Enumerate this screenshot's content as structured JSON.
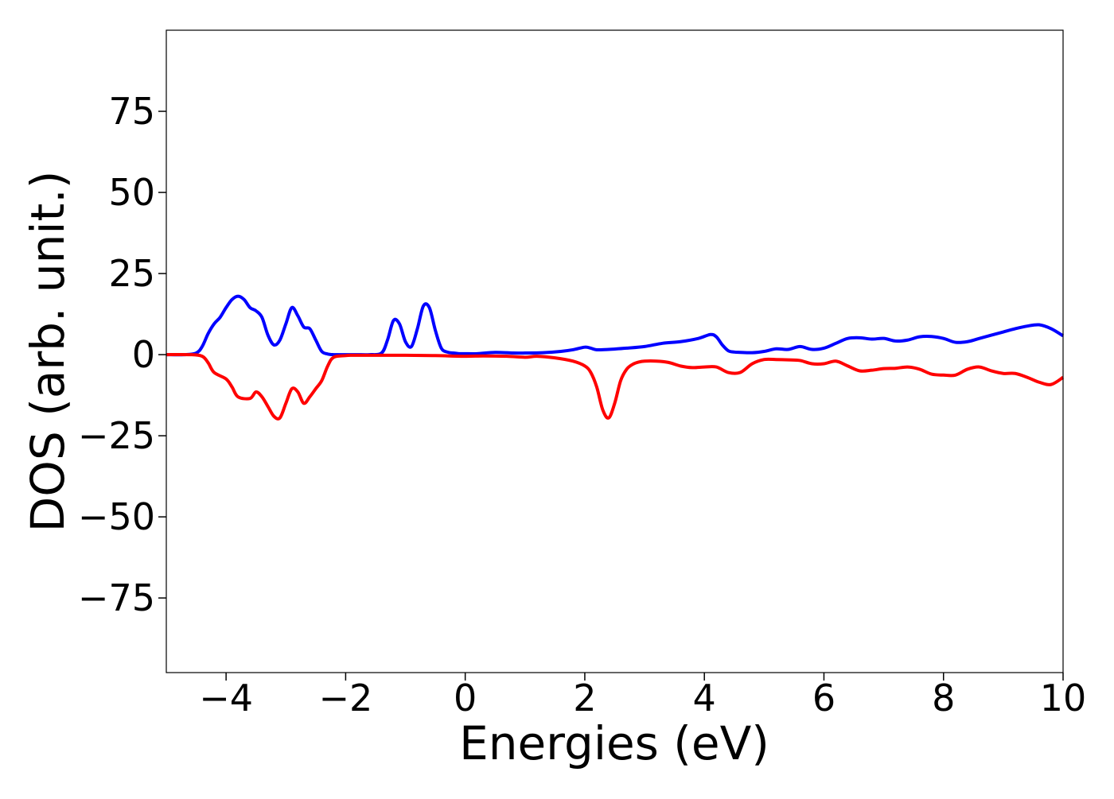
{
  "chart_data": {
    "type": "line",
    "title": "",
    "xlabel": "Energies (eV)",
    "ylabel": "DOS (arb. unit.)",
    "xlim": [
      -5,
      10
    ],
    "ylim": [
      -98,
      100
    ],
    "xticks": [
      -4,
      -2,
      0,
      2,
      4,
      6,
      8,
      10
    ],
    "xtick_labels": [
      "−4",
      "−2",
      "0",
      "2",
      "4",
      "6",
      "8",
      "10"
    ],
    "yticks": [
      75,
      50,
      25,
      0,
      -25,
      -50,
      -75
    ],
    "ytick_labels": [
      "75",
      "50",
      "25",
      "0",
      "−25",
      "−50",
      "−75"
    ],
    "grid": false,
    "legend": "none",
    "series": [
      {
        "color": "#0000ff",
        "x": [
          -5.0,
          -4.7,
          -4.5,
          -4.4,
          -4.3,
          -4.2,
          -4.1,
          -4.0,
          -3.9,
          -3.8,
          -3.7,
          -3.6,
          -3.5,
          -3.4,
          -3.3,
          -3.2,
          -3.1,
          -3.0,
          -2.9,
          -2.8,
          -2.7,
          -2.6,
          -2.5,
          -2.4,
          -2.3,
          -2.2,
          -2.1,
          -2.0,
          -1.9,
          -1.8,
          -1.6,
          -1.4,
          -1.3,
          -1.2,
          -1.1,
          -1.0,
          -0.9,
          -0.8,
          -0.7,
          -0.6,
          -0.5,
          -0.4,
          -0.3,
          -0.2,
          -0.1,
          0.0,
          0.2,
          0.5,
          0.8,
          1.0,
          1.3,
          1.6,
          1.8,
          2.0,
          2.1,
          2.2,
          2.4,
          2.7,
          3.0,
          3.3,
          3.6,
          3.9,
          4.1,
          4.2,
          4.3,
          4.4,
          4.5,
          4.6,
          4.8,
          5.0,
          5.2,
          5.4,
          5.6,
          5.8,
          6.0,
          6.2,
          6.4,
          6.6,
          6.8,
          7.0,
          7.2,
          7.4,
          7.6,
          7.8,
          8.0,
          8.2,
          8.4,
          8.6,
          8.8,
          9.0,
          9.2,
          9.4,
          9.6,
          9.8,
          10.0
        ],
        "y": [
          0.0,
          0.0,
          0.5,
          2.5,
          6.5,
          9.5,
          11.5,
          14.5,
          17.0,
          18.0,
          17.0,
          14.5,
          13.5,
          11.5,
          6.0,
          3.0,
          4.5,
          9.5,
          14.5,
          12.0,
          8.5,
          8.0,
          4.5,
          1.0,
          0.2,
          0.0,
          0.0,
          0.0,
          0.0,
          0.0,
          0.0,
          0.5,
          4.5,
          10.5,
          9.5,
          4.0,
          2.5,
          8.0,
          15.0,
          14.5,
          7.5,
          2.0,
          0.8,
          0.5,
          0.3,
          0.3,
          0.3,
          0.7,
          0.5,
          0.5,
          0.6,
          1.0,
          1.5,
          2.3,
          2.0,
          1.5,
          1.6,
          2.0,
          2.5,
          3.5,
          4.0,
          5.0,
          6.2,
          5.5,
          3.0,
          1.2,
          0.8,
          0.7,
          0.6,
          1.0,
          1.8,
          1.6,
          2.5,
          1.6,
          2.0,
          3.5,
          5.0,
          5.2,
          4.8,
          5.0,
          4.2,
          4.5,
          5.5,
          5.6,
          5.0,
          3.8,
          4.0,
          5.0,
          6.0,
          7.0,
          8.0,
          8.8,
          9.2,
          8.0,
          5.8
        ]
      },
      {
        "color": "#ff0000",
        "x": [
          -5.0,
          -4.6,
          -4.4,
          -4.3,
          -4.2,
          -4.0,
          -3.9,
          -3.8,
          -3.6,
          -3.5,
          -3.4,
          -3.3,
          -3.2,
          -3.1,
          -3.0,
          -2.9,
          -2.8,
          -2.7,
          -2.6,
          -2.5,
          -2.4,
          -2.3,
          -2.2,
          -2.0,
          -1.9,
          -1.8,
          -1.5,
          -1.0,
          -0.5,
          0.0,
          0.3,
          0.7,
          1.0,
          1.2,
          1.5,
          1.8,
          2.0,
          2.1,
          2.2,
          2.3,
          2.4,
          2.5,
          2.6,
          2.7,
          2.8,
          2.9,
          3.0,
          3.2,
          3.4,
          3.6,
          3.8,
          4.0,
          4.2,
          4.4,
          4.6,
          4.8,
          5.0,
          5.2,
          5.4,
          5.6,
          5.8,
          6.0,
          6.2,
          6.4,
          6.6,
          6.8,
          7.0,
          7.2,
          7.4,
          7.6,
          7.8,
          8.0,
          8.2,
          8.4,
          8.6,
          8.8,
          9.0,
          9.2,
          9.4,
          9.6,
          9.8,
          10.0
        ],
        "y": [
          0.0,
          0.0,
          -0.5,
          -2.5,
          -5.5,
          -7.5,
          -10.0,
          -13.0,
          -13.5,
          -11.5,
          -13.0,
          -16.0,
          -19.0,
          -19.5,
          -15.0,
          -10.5,
          -11.5,
          -15.0,
          -13.0,
          -10.5,
          -8.0,
          -3.5,
          -0.8,
          -0.3,
          -0.2,
          -0.2,
          -0.2,
          -0.2,
          -0.3,
          -0.5,
          -0.4,
          -0.5,
          -0.8,
          -0.5,
          -1.0,
          -2.0,
          -3.5,
          -5.5,
          -10.0,
          -17.0,
          -19.5,
          -15.0,
          -8.0,
          -4.5,
          -3.0,
          -2.3,
          -2.0,
          -2.0,
          -2.4,
          -3.5,
          -4.0,
          -3.8,
          -3.8,
          -5.5,
          -5.5,
          -2.8,
          -1.5,
          -1.5,
          -1.6,
          -1.8,
          -2.8,
          -2.8,
          -2.0,
          -3.5,
          -5.0,
          -4.8,
          -4.3,
          -4.2,
          -3.8,
          -4.5,
          -6.0,
          -6.3,
          -6.3,
          -4.5,
          -3.8,
          -5.0,
          -5.8,
          -5.8,
          -7.0,
          -8.5,
          -9.2,
          -7.0
        ]
      }
    ]
  }
}
